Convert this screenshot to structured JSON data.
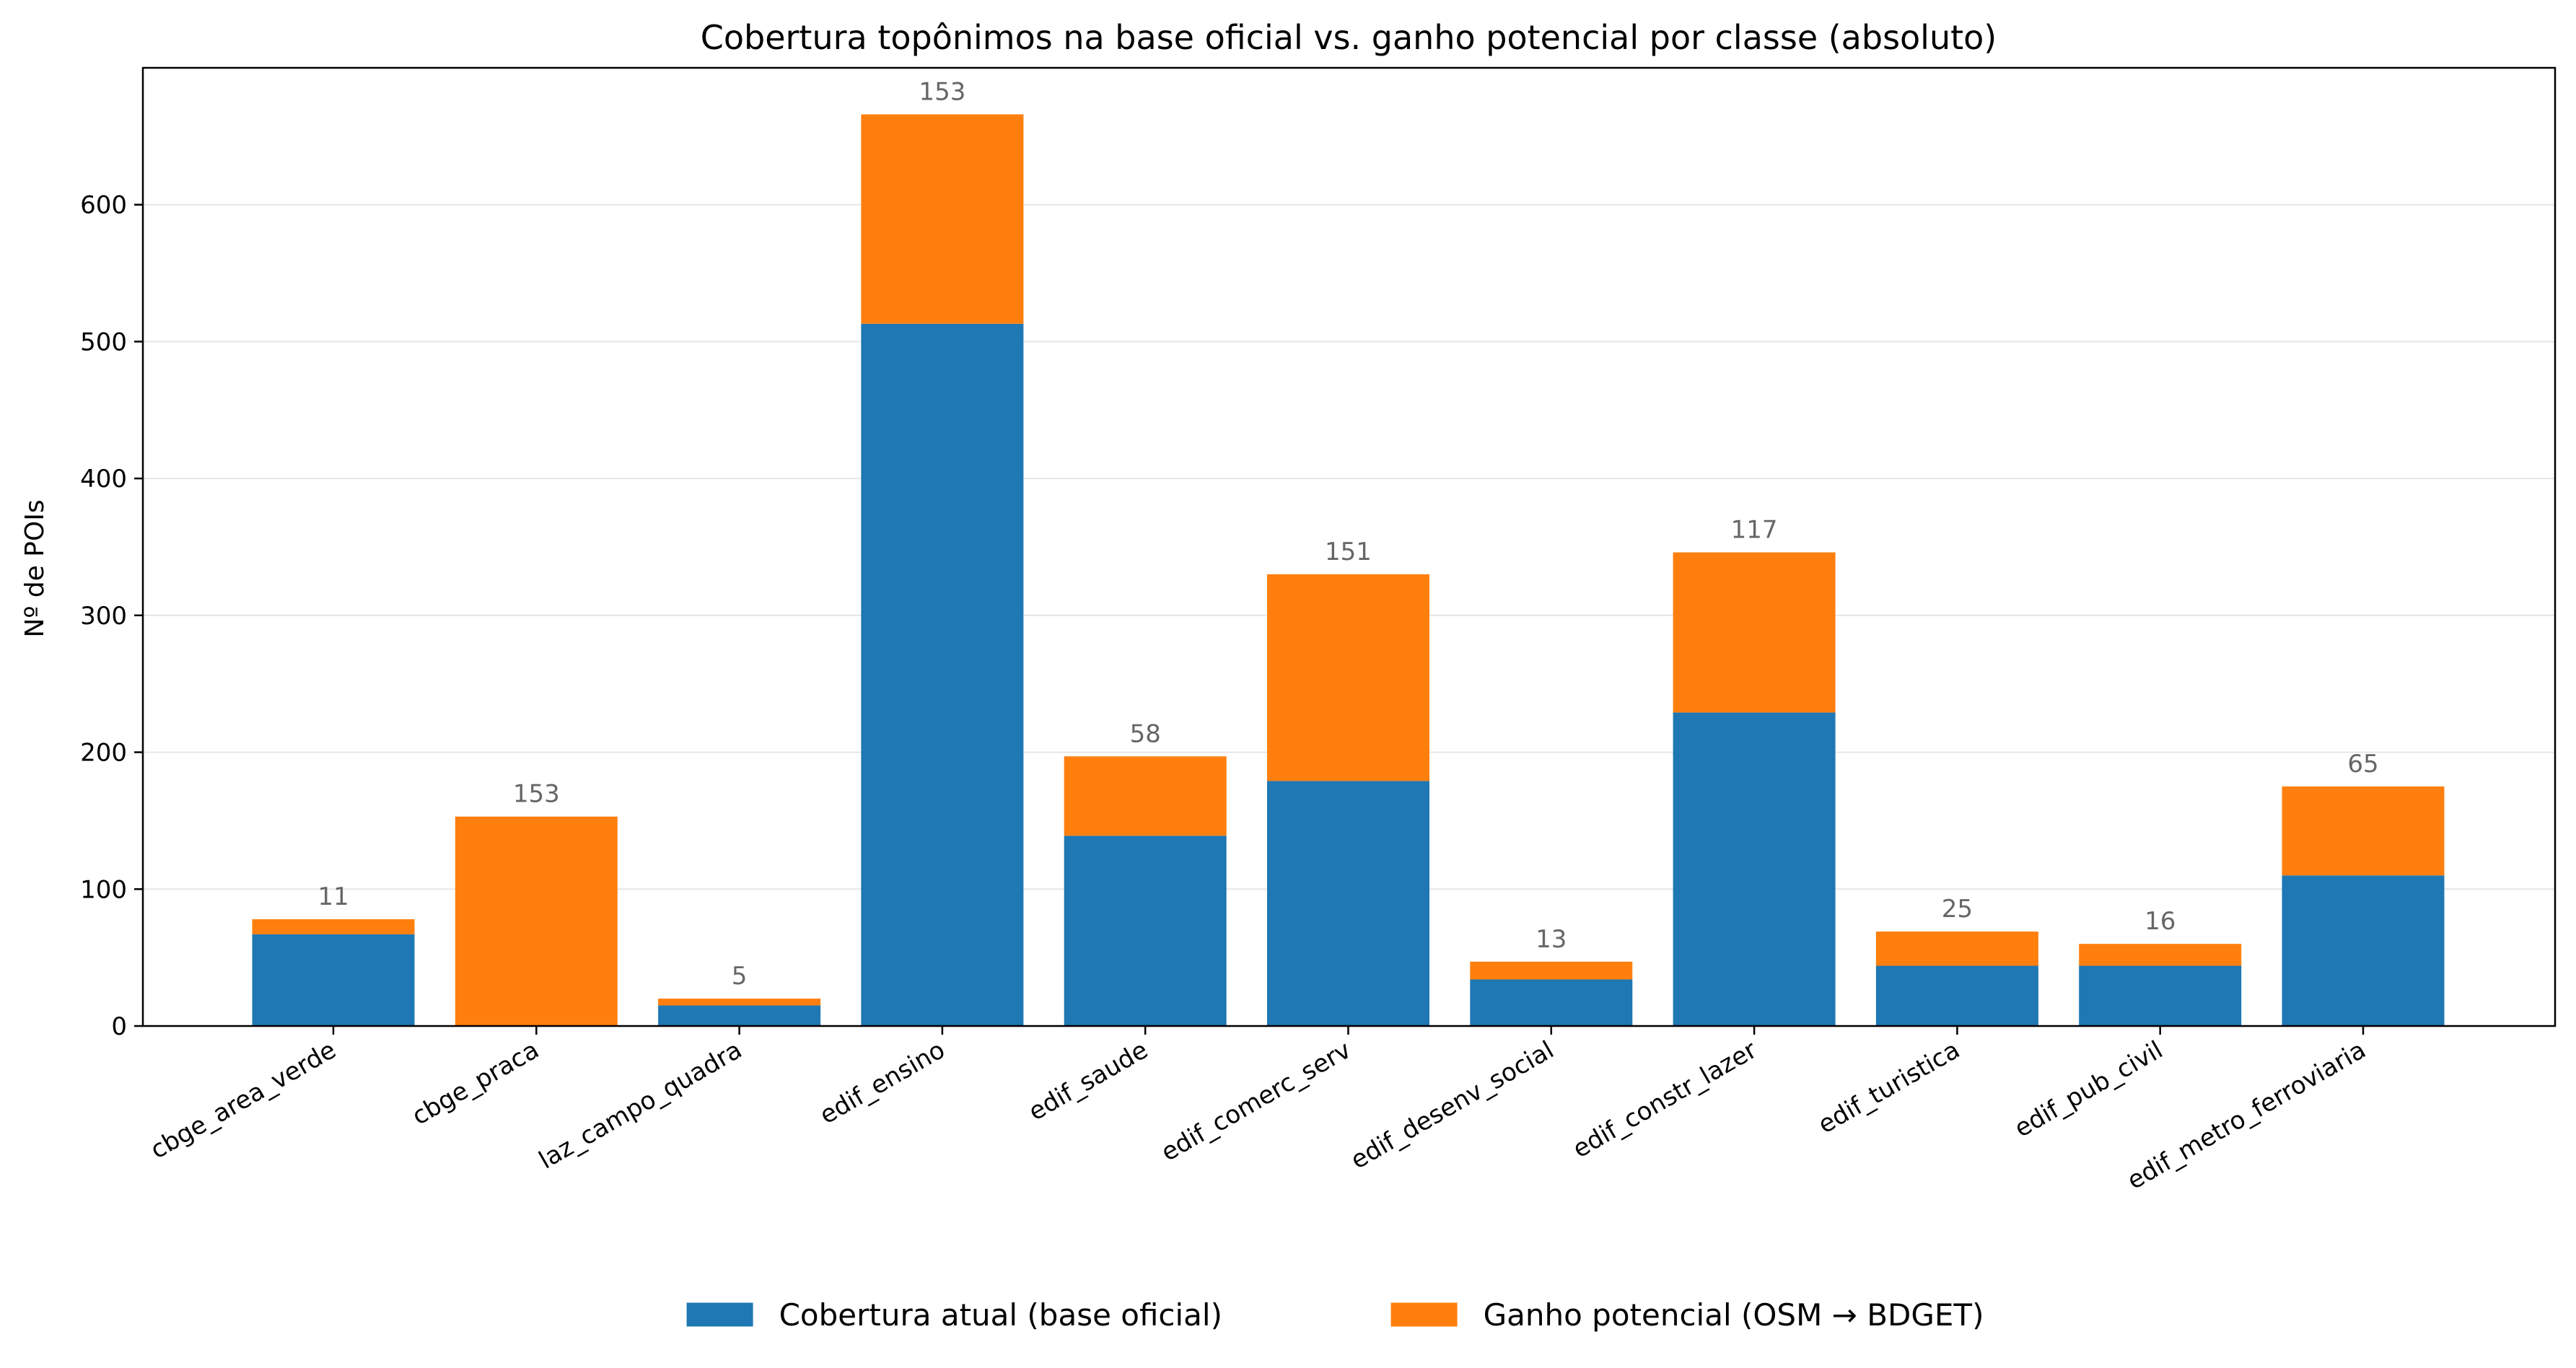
{
  "chart_data": {
    "type": "bar",
    "stacked": true,
    "title": "Cobertura topônimos na base oficial vs. ganho potencial por classe (absoluto)",
    "xlabel": "",
    "ylabel": "Nº de POIs",
    "ylim": [
      0,
      700
    ],
    "yticks": [
      0,
      100,
      200,
      300,
      400,
      500,
      600
    ],
    "grid": "horizontal",
    "legend_position": "bottom-center",
    "categories": [
      "cbge_area_verde",
      "cbge_praca",
      "laz_campo_quadra",
      "edif_ensino",
      "edif_saude",
      "edif_comerc_serv",
      "edif_desenv_social",
      "edif_constr_lazer",
      "edif_turistica",
      "edif_pub_civil",
      "edif_metro_ferroviaria"
    ],
    "series": [
      {
        "name": "Cobertura atual (base oficial)",
        "color": "#1f77b4",
        "values": [
          67,
          0,
          15,
          513,
          139,
          179,
          34,
          229,
          44,
          44,
          110
        ]
      },
      {
        "name": "Ganho potencial (OSM → BDGET)",
        "color": "#ff7f0e",
        "values": [
          11,
          153,
          5,
          153,
          58,
          151,
          13,
          117,
          25,
          16,
          65
        ]
      }
    ],
    "data_labels": [
      "11",
      "153",
      "5",
      "153",
      "58",
      "151",
      "13",
      "117",
      "25",
      "16",
      "65"
    ]
  }
}
